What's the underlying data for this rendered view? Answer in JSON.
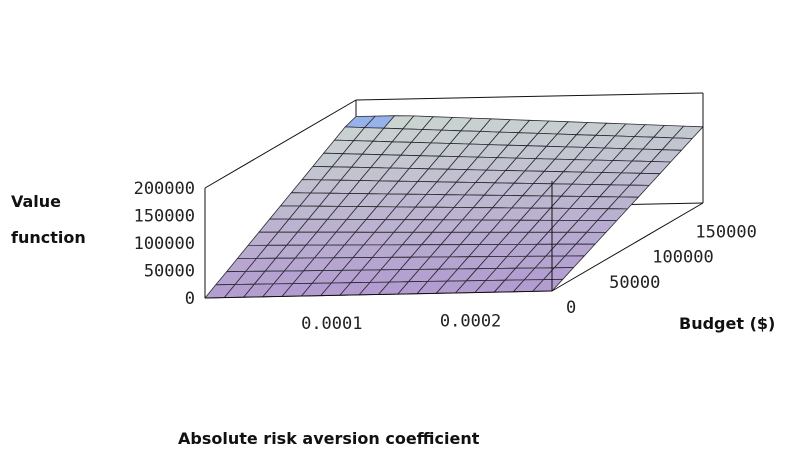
{
  "chart_data": {
    "type": "surface",
    "title": "",
    "xlabel": "Absolute risk aversion coefficient",
    "ylabel": "Budget ($)",
    "zlabel_lines": [
      "Value",
      "function"
    ],
    "x_ticks": [
      {
        "value": 0.0001,
        "label": "0.0001"
      },
      {
        "value": 0.0002,
        "label": "0.0002"
      }
    ],
    "y_ticks": [
      {
        "value": 0,
        "label": "0"
      },
      {
        "value": 50000,
        "label": "50000"
      },
      {
        "value": 100000,
        "label": "100000"
      },
      {
        "value": 150000,
        "label": "150000"
      }
    ],
    "z_ticks": [
      {
        "value": 0,
        "label": "0"
      },
      {
        "value": 50000,
        "label": "50000"
      },
      {
        "value": 100000,
        "label": "100000"
      },
      {
        "value": 150000,
        "label": "150000"
      },
      {
        "value": 200000,
        "label": "200000"
      }
    ],
    "xlim": [
      0,
      0.00025
    ],
    "ylim": [
      0,
      175000
    ],
    "zlim": [
      0,
      200000
    ],
    "grid": false,
    "legend": "none"
  }
}
